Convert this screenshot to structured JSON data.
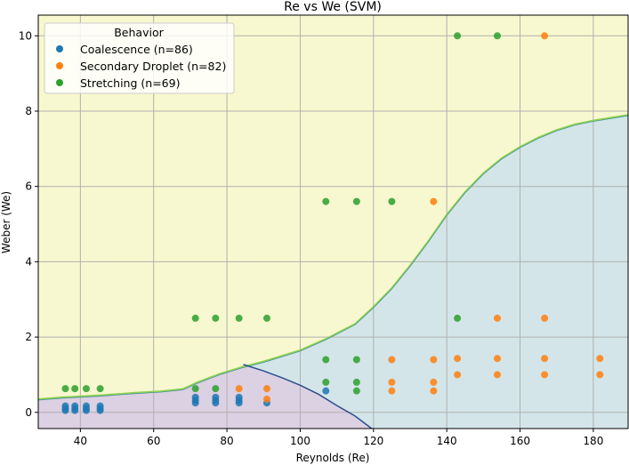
{
  "chart_data": {
    "type": "scatter",
    "title": "Re vs We (SVM)",
    "xlabel": "Reynolds (Re)",
    "ylabel": "Weber (We)",
    "xlim": [
      28.5,
      189.5
    ],
    "ylim": [
      -0.43,
      10.55
    ],
    "xticks": [
      40,
      60,
      80,
      100,
      120,
      140,
      160,
      180
    ],
    "yticks": [
      0,
      2,
      4,
      6,
      8,
      10
    ],
    "grid": true,
    "legend": {
      "title": "Behavior",
      "placement": "top-left",
      "entries": [
        {
          "label": "Coalescence (n=86)",
          "color": "#1f77b4"
        },
        {
          "label": "Secondary Droplet (n=82)",
          "color": "#ff7f0e"
        },
        {
          "label": "Stretching (n=69)",
          "color": "#2ca02c"
        }
      ]
    },
    "regions": {
      "stretching_color": "#f7f8cf",
      "secondary_color": "#d3e5e8",
      "coalescence_color": "#dcd0e3",
      "boundary_upper": [
        [
          28.5,
          0.35
        ],
        [
          35,
          0.4
        ],
        [
          45,
          0.45
        ],
        [
          55,
          0.52
        ],
        [
          62,
          0.56
        ],
        [
          68,
          0.62
        ],
        [
          72,
          0.8
        ],
        [
          78,
          1.02
        ],
        [
          84,
          1.2
        ],
        [
          90,
          1.35
        ],
        [
          100,
          1.65
        ],
        [
          107,
          1.95
        ],
        [
          115,
          2.35
        ],
        [
          120,
          2.8
        ],
        [
          125,
          3.3
        ],
        [
          130,
          3.9
        ],
        [
          135,
          4.55
        ],
        [
          140,
          5.25
        ],
        [
          145,
          5.85
        ],
        [
          150,
          6.35
        ],
        [
          155,
          6.75
        ],
        [
          160,
          7.05
        ],
        [
          165,
          7.3
        ],
        [
          170,
          7.5
        ],
        [
          175,
          7.65
        ],
        [
          180,
          7.75
        ],
        [
          189.5,
          7.9
        ]
      ],
      "boundary_lower": [
        [
          84.5,
          1.27
        ],
        [
          90,
          1.1
        ],
        [
          95,
          0.92
        ],
        [
          100,
          0.72
        ],
        [
          105,
          0.48
        ],
        [
          110,
          0.18
        ],
        [
          115,
          -0.1
        ],
        [
          119.5,
          -0.43
        ]
      ]
    },
    "series": [
      {
        "name": "Coalescence",
        "color": "#1f77b4",
        "points": [
          [
            35.9,
            0.05
          ],
          [
            35.9,
            0.1
          ],
          [
            35.9,
            0.17
          ],
          [
            38.5,
            0.05
          ],
          [
            38.5,
            0.1
          ],
          [
            38.5,
            0.17
          ],
          [
            41.6,
            0.05
          ],
          [
            41.6,
            0.1
          ],
          [
            41.6,
            0.17
          ],
          [
            45.4,
            0.05
          ],
          [
            45.4,
            0.1
          ],
          [
            45.4,
            0.17
          ],
          [
            71.4,
            0.25
          ],
          [
            71.4,
            0.32
          ],
          [
            71.4,
            0.4
          ],
          [
            76.9,
            0.25
          ],
          [
            76.9,
            0.32
          ],
          [
            76.9,
            0.4
          ],
          [
            83.3,
            0.25
          ],
          [
            83.3,
            0.32
          ],
          [
            83.3,
            0.4
          ],
          [
            90.9,
            0.25
          ],
          [
            107,
            0.57
          ]
        ]
      },
      {
        "name": "Secondary Droplet",
        "color": "#ff7f0e",
        "points": [
          [
            83.3,
            0.63
          ],
          [
            90.9,
            0.63
          ],
          [
            90.9,
            0.35
          ],
          [
            125,
            0.57
          ],
          [
            125,
            0.8
          ],
          [
            125,
            1.4
          ],
          [
            136.4,
            0.57
          ],
          [
            136.4,
            0.8
          ],
          [
            136.4,
            1.4
          ],
          [
            136.4,
            5.6
          ],
          [
            142.9,
            1.0
          ],
          [
            142.9,
            1.43
          ],
          [
            153.8,
            1.0
          ],
          [
            153.8,
            1.43
          ],
          [
            153.8,
            2.5
          ],
          [
            166.7,
            1.0
          ],
          [
            166.7,
            1.43
          ],
          [
            166.7,
            2.5
          ],
          [
            166.7,
            10.0
          ],
          [
            181.8,
            1.0
          ],
          [
            181.8,
            1.43
          ]
        ]
      },
      {
        "name": "Stretching",
        "color": "#2ca02c",
        "points": [
          [
            35.9,
            0.63
          ],
          [
            38.5,
            0.63
          ],
          [
            41.6,
            0.63
          ],
          [
            45.4,
            0.63
          ],
          [
            71.4,
            0.63
          ],
          [
            76.9,
            0.63
          ],
          [
            71.4,
            2.5
          ],
          [
            76.9,
            2.5
          ],
          [
            83.3,
            2.5
          ],
          [
            90.9,
            2.5
          ],
          [
            107,
            0.8
          ],
          [
            107,
            1.4
          ],
          [
            107,
            5.6
          ],
          [
            115.4,
            0.57
          ],
          [
            115.4,
            0.8
          ],
          [
            115.4,
            1.4
          ],
          [
            115.4,
            5.6
          ],
          [
            125,
            5.6
          ],
          [
            142.9,
            2.5
          ],
          [
            142.9,
            10.0
          ],
          [
            153.8,
            10.0
          ]
        ]
      }
    ]
  }
}
